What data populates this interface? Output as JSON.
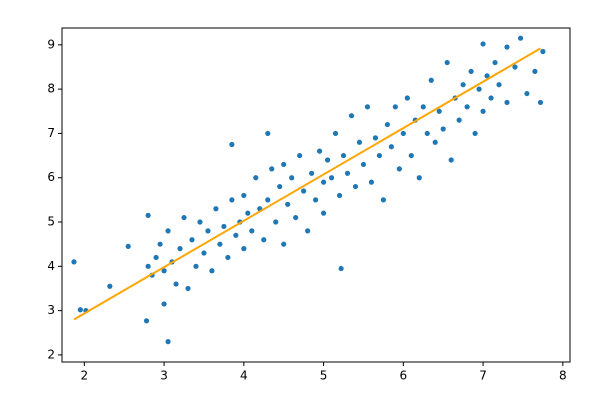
{
  "chart_data": {
    "type": "scatter",
    "color": "#1f77b4",
    "x": [
      1.87,
      1.95,
      2.02,
      2.32,
      2.55,
      2.78,
      2.8,
      3.0,
      3.05,
      3.85,
      4.3,
      5.22,
      7.47,
      7.0,
      7.3,
      7.72,
      7.65,
      7.75,
      7.55,
      2.8,
      2.85,
      2.9,
      2.95,
      3.0,
      3.05,
      3.1,
      3.15,
      3.2,
      3.25,
      3.3,
      3.35,
      3.4,
      3.45,
      3.5,
      3.55,
      3.6,
      3.65,
      3.7,
      3.75,
      3.8,
      3.85,
      3.9,
      3.95,
      4.0,
      4.0,
      4.05,
      4.1,
      4.15,
      4.2,
      4.25,
      4.3,
      4.35,
      4.4,
      4.45,
      4.5,
      4.5,
      4.55,
      4.6,
      4.65,
      4.7,
      4.75,
      4.8,
      4.85,
      4.9,
      4.95,
      5.0,
      5.0,
      5.05,
      5.1,
      5.15,
      5.2,
      5.25,
      5.3,
      5.35,
      5.4,
      5.45,
      5.5,
      5.55,
      5.6,
      5.65,
      5.7,
      5.75,
      5.8,
      5.85,
      5.9,
      5.95,
      6.0,
      6.05,
      6.1,
      6.15,
      6.2,
      6.25,
      6.3,
      6.35,
      6.4,
      6.45,
      6.5,
      6.55,
      6.6,
      6.65,
      6.7,
      6.75,
      6.8,
      6.85,
      6.9,
      6.95,
      7.0,
      7.05,
      7.1,
      7.15,
      7.2,
      7.3,
      7.4
    ],
    "values": [
      4.1,
      3.02,
      3.0,
      3.55,
      4.45,
      2.77,
      5.15,
      3.15,
      2.3,
      6.75,
      7.0,
      3.95,
      9.15,
      9.02,
      8.95,
      7.7,
      8.4,
      8.85,
      7.9,
      4.0,
      3.8,
      4.2,
      4.5,
      3.9,
      4.8,
      4.1,
      3.6,
      4.4,
      5.1,
      3.5,
      4.6,
      4.0,
      5.0,
      4.3,
      4.8,
      3.9,
      5.3,
      4.5,
      4.9,
      4.2,
      5.5,
      4.7,
      5.0,
      5.6,
      4.4,
      5.2,
      4.8,
      6.0,
      5.3,
      4.6,
      5.5,
      6.2,
      5.0,
      5.8,
      6.3,
      4.5,
      5.4,
      6.0,
      5.1,
      6.5,
      5.7,
      4.8,
      6.1,
      5.5,
      6.6,
      5.9,
      5.2,
      6.4,
      6.0,
      7.0,
      5.6,
      6.5,
      6.1,
      7.4,
      5.8,
      6.8,
      6.3,
      7.6,
      5.9,
      6.9,
      6.5,
      5.5,
      7.2,
      6.7,
      7.6,
      6.2,
      7.0,
      7.8,
      6.5,
      7.3,
      6.0,
      7.6,
      7.0,
      8.2,
      6.8,
      7.5,
      7.1,
      8.6,
      6.4,
      7.8,
      7.3,
      8.1,
      7.6,
      8.4,
      7.0,
      8.0,
      7.5,
      8.3,
      7.8,
      8.6,
      8.1,
      7.7,
      8.5
    ],
    "line": {
      "x": [
        1.87,
        7.72
      ],
      "values": [
        2.8,
        8.92
      ],
      "color": "#ffa500"
    },
    "xlim": [
      1.72,
      8.09
    ],
    "ylim": [
      1.84,
      9.38
    ],
    "xticks": [
      2,
      3,
      4,
      5,
      6,
      7,
      8
    ],
    "yticks": [
      2,
      3,
      4,
      5,
      6,
      7,
      8,
      9
    ],
    "grid": false
  }
}
